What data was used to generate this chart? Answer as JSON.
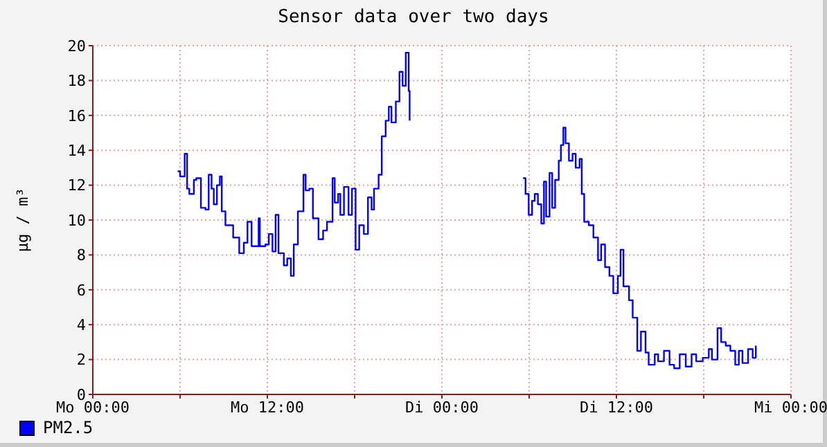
{
  "chart_data": {
    "type": "step",
    "title": "Sensor data over two days",
    "ylabel": "µg / m³",
    "x": [
      "--01-01T05:50",
      "--01-01T06:00",
      "--01-01T06:19",
      "--01-01T06:29",
      "--01-01T06:38",
      "--01-01T06:57",
      "--01-01T07:07",
      "--01-01T07:26",
      "--01-01T07:45",
      "--01-01T07:58",
      "--01-01T08:10",
      "--01-01T08:19",
      "--01-01T08:32",
      "--01-01T08:44",
      "--01-01T08:52",
      "--01-01T09:07",
      "--01-01T09:29",
      "--01-01T09:39",
      "--01-01T10:04",
      "--01-01T10:23",
      "--01-01T10:38",
      "--01-01T10:55",
      "--01-01T11:24",
      "--01-01T11:29",
      "--01-01T11:52",
      "--01-01T12:06",
      "--01-01T12:21",
      "--01-01T12:34",
      "--01-01T12:46",
      "--01-01T13:08",
      "--01-01T13:22",
      "--01-01T13:37",
      "--01-01T13:49",
      "--01-01T14:06",
      "--01-01T14:29",
      "--01-01T14:38",
      "--01-01T14:53",
      "--01-01T15:08",
      "--01-01T15:31",
      "--01-01T15:50",
      "--01-01T16:06",
      "--01-01T16:29",
      "--01-01T16:38",
      "--01-01T16:52",
      "--01-01T17:01",
      "--01-01T17:16",
      "--01-01T17:35",
      "--01-01T17:49",
      "--01-01T18:04",
      "--01-01T18:19",
      "--01-01T18:38",
      "--01-01T18:55",
      "--01-01T19:10",
      "--01-01T19:20",
      "--01-01T19:39",
      "--01-01T19:52",
      "--01-01T20:08",
      "--01-01T20:21",
      "--01-01T20:32",
      "--01-01T20:50",
      "--01-01T21:05",
      "--01-01T21:18",
      "--01-01T21:31",
      "--01-01T21:43",
      "--01-01T21:47",
      "--01-02T01:00",
      "--01-02T05:35",
      "--01-02T05:45",
      "--01-02T05:58",
      "--01-02T06:12",
      "--01-02T06:23",
      "--01-02T06:36",
      "--01-02T06:50",
      "--01-02T07:01",
      "--01-02T07:10",
      "--01-02T07:24",
      "--01-02T07:35",
      "--01-02T07:47",
      "--01-02T08:02",
      "--01-02T08:11",
      "--01-02T08:21",
      "--01-02T08:30",
      "--01-02T08:44",
      "--01-02T08:59",
      "--01-02T09:12",
      "--01-02T09:28",
      "--01-02T09:37",
      "--01-02T09:47",
      "--01-02T10:06",
      "--01-02T10:25",
      "--01-02T10:44",
      "--01-02T10:57",
      "--01-02T11:13",
      "--01-02T11:31",
      "--01-02T11:47",
      "--01-02T12:06",
      "--01-02T12:17",
      "--01-02T12:29",
      "--01-02T12:52",
      "--01-02T13:07",
      "--01-02T13:26",
      "--01-02T13:41",
      "--01-02T14:00",
      "--01-02T14:13",
      "--01-02T14:38",
      "--01-02T14:52",
      "--01-02T15:16",
      "--01-02T15:39",
      "--01-02T15:58",
      "--01-02T16:21",
      "--01-02T16:46",
      "--01-02T17:10",
      "--01-02T17:29",
      "--01-02T17:56",
      "--01-02T18:21",
      "--01-02T18:34",
      "--01-02T18:57",
      "--01-02T19:12",
      "--01-02T19:31",
      "--01-02T19:50",
      "--01-02T20:10",
      "--01-02T20:25",
      "--01-02T20:40",
      "--01-02T21:03",
      "--01-02T21:22",
      "--01-02T21:35"
    ],
    "series": [
      {
        "name": "PM2.5",
        "color": "#0000ff",
        "values": [
          12.8,
          12.5,
          13.8,
          11.8,
          11.5,
          12.3,
          12.4,
          10.7,
          10.6,
          12.6,
          11.8,
          10.9,
          12.0,
          12.5,
          10.5,
          9.7,
          9.7,
          9.0,
          8.1,
          8.7,
          9.9,
          8.5,
          10.1,
          8.5,
          8.6,
          9.2,
          8.2,
          10.3,
          8.1,
          7.4,
          7.8,
          6.8,
          8.6,
          10.5,
          12.6,
          11.7,
          11.8,
          10.1,
          8.9,
          9.4,
          9.9,
          12.4,
          11.0,
          11.5,
          10.3,
          11.9,
          10.3,
          11.8,
          8.3,
          9.7,
          9.2,
          11.3,
          10.6,
          11.8,
          12.6,
          14.8,
          15.7,
          16.5,
          15.6,
          16.8,
          18.5,
          17.7,
          19.6,
          17.4,
          15.7,
          null,
          12.4,
          11.5,
          10.3,
          11.1,
          11.5,
          10.9,
          9.8,
          12.2,
          10.2,
          12.7,
          10.7,
          12.3,
          13.4,
          14.3,
          15.3,
          14.4,
          13.4,
          13.8,
          13.0,
          13.5,
          11.5,
          9.9,
          9.7,
          9.0,
          7.7,
          8.6,
          7.3,
          6.8,
          5.8,
          6.8,
          8.3,
          6.2,
          5.4,
          4.4,
          2.5,
          3.6,
          2.4,
          1.7,
          2.3,
          1.9,
          2.5,
          1.7,
          1.5,
          2.3,
          1.6,
          2.3,
          1.9,
          2.1,
          2.6,
          2.0,
          3.8,
          3.0,
          2.8,
          2.5,
          1.7,
          2.5,
          1.8,
          2.6,
          2.1,
          2.8
        ]
      }
    ],
    "xlim": [
      "--01-01T00:00",
      "--01-03T00:00"
    ],
    "xticks": [
      {
        "value": "--01-01T00:00",
        "label": "Mo 00:00"
      },
      {
        "value": "--01-01T06:00",
        "label": null
      },
      {
        "value": "--01-01T12:00",
        "label": "Mo 12:00"
      },
      {
        "value": "--01-01T18:00",
        "label": null
      },
      {
        "value": "--01-02T00:00",
        "label": "Di 00:00"
      },
      {
        "value": "--01-02T06:00",
        "label": null
      },
      {
        "value": "--01-02T12:00",
        "label": "Di 12:00"
      },
      {
        "value": "--01-02T18:00",
        "label": null
      },
      {
        "value": "--01-03T00:00",
        "label": "Mi 00:00"
      }
    ],
    "ylim": [
      0,
      20
    ],
    "yticks": [
      0,
      2,
      4,
      6,
      8,
      10,
      12,
      14,
      16,
      18,
      20
    ],
    "grid": true,
    "legend": "bottom left"
  }
}
